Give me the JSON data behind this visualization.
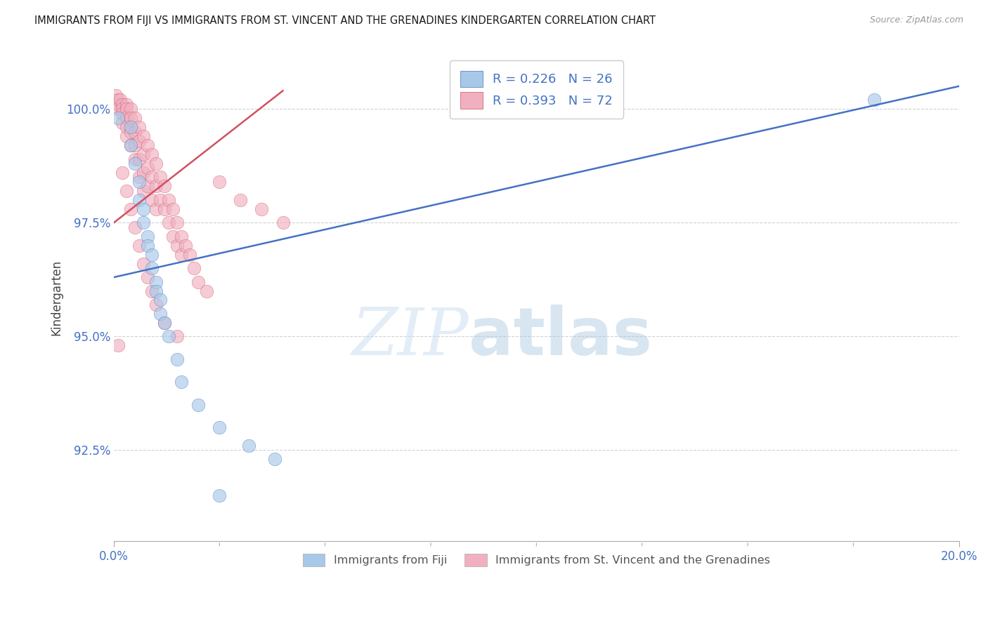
{
  "title": "IMMIGRANTS FROM FIJI VS IMMIGRANTS FROM ST. VINCENT AND THE GRENADINES KINDERGARTEN CORRELATION CHART",
  "source": "Source: ZipAtlas.com",
  "ylabel": "Kindergarten",
  "x_min": 0.0,
  "x_max": 0.2,
  "y_min": 90.5,
  "y_max": 101.2,
  "y_ticks": [
    92.5,
    95.0,
    97.5,
    100.0
  ],
  "y_tick_labels": [
    "92.5%",
    "95.0%",
    "97.5%",
    "100.0%"
  ],
  "x_ticks": [
    0.0,
    0.2
  ],
  "x_tick_labels": [
    "0.0%",
    "20.0%"
  ],
  "fiji_color": "#a8c8e8",
  "stvincent_color": "#f0b0c0",
  "fiji_trendline_color": "#4472c4",
  "stvincent_trendline_color": "#d05060",
  "fiji_points": [
    [
      0.001,
      99.8
    ],
    [
      0.004,
      99.6
    ],
    [
      0.004,
      99.2
    ],
    [
      0.005,
      98.8
    ],
    [
      0.006,
      98.4
    ],
    [
      0.006,
      98.0
    ],
    [
      0.007,
      97.8
    ],
    [
      0.007,
      97.5
    ],
    [
      0.008,
      97.2
    ],
    [
      0.008,
      97.0
    ],
    [
      0.009,
      96.8
    ],
    [
      0.009,
      96.5
    ],
    [
      0.01,
      96.2
    ],
    [
      0.01,
      96.0
    ],
    [
      0.011,
      95.8
    ],
    [
      0.011,
      95.5
    ],
    [
      0.012,
      95.3
    ],
    [
      0.013,
      95.0
    ],
    [
      0.016,
      94.0
    ],
    [
      0.02,
      93.5
    ],
    [
      0.025,
      93.0
    ],
    [
      0.032,
      92.6
    ],
    [
      0.038,
      92.3
    ],
    [
      0.18,
      100.2
    ],
    [
      0.025,
      91.5
    ],
    [
      0.015,
      94.5
    ]
  ],
  "stvincent_points": [
    [
      0.0005,
      100.3
    ],
    [
      0.001,
      100.2
    ],
    [
      0.001,
      100.1
    ],
    [
      0.001,
      100.0
    ],
    [
      0.0015,
      100.2
    ],
    [
      0.002,
      100.1
    ],
    [
      0.002,
      100.0
    ],
    [
      0.002,
      99.9
    ],
    [
      0.002,
      99.7
    ],
    [
      0.003,
      100.1
    ],
    [
      0.003,
      100.0
    ],
    [
      0.003,
      99.8
    ],
    [
      0.003,
      99.6
    ],
    [
      0.003,
      99.4
    ],
    [
      0.004,
      100.0
    ],
    [
      0.004,
      99.8
    ],
    [
      0.004,
      99.5
    ],
    [
      0.004,
      99.2
    ],
    [
      0.005,
      99.8
    ],
    [
      0.005,
      99.5
    ],
    [
      0.005,
      99.2
    ],
    [
      0.005,
      98.9
    ],
    [
      0.006,
      99.6
    ],
    [
      0.006,
      99.3
    ],
    [
      0.006,
      98.9
    ],
    [
      0.006,
      98.5
    ],
    [
      0.007,
      99.4
    ],
    [
      0.007,
      99.0
    ],
    [
      0.007,
      98.6
    ],
    [
      0.007,
      98.2
    ],
    [
      0.008,
      99.2
    ],
    [
      0.008,
      98.7
    ],
    [
      0.008,
      98.3
    ],
    [
      0.009,
      99.0
    ],
    [
      0.009,
      98.5
    ],
    [
      0.009,
      98.0
    ],
    [
      0.01,
      98.8
    ],
    [
      0.01,
      98.3
    ],
    [
      0.01,
      97.8
    ],
    [
      0.011,
      98.5
    ],
    [
      0.011,
      98.0
    ],
    [
      0.012,
      98.3
    ],
    [
      0.012,
      97.8
    ],
    [
      0.013,
      98.0
    ],
    [
      0.013,
      97.5
    ],
    [
      0.014,
      97.8
    ],
    [
      0.014,
      97.2
    ],
    [
      0.015,
      97.5
    ],
    [
      0.015,
      97.0
    ],
    [
      0.016,
      97.2
    ],
    [
      0.016,
      96.8
    ],
    [
      0.017,
      97.0
    ],
    [
      0.018,
      96.8
    ],
    [
      0.019,
      96.5
    ],
    [
      0.02,
      96.2
    ],
    [
      0.022,
      96.0
    ],
    [
      0.001,
      94.8
    ],
    [
      0.025,
      98.4
    ],
    [
      0.03,
      98.0
    ],
    [
      0.035,
      97.8
    ],
    [
      0.04,
      97.5
    ],
    [
      0.002,
      98.6
    ],
    [
      0.003,
      98.2
    ],
    [
      0.004,
      97.8
    ],
    [
      0.005,
      97.4
    ],
    [
      0.006,
      97.0
    ],
    [
      0.007,
      96.6
    ],
    [
      0.008,
      96.3
    ],
    [
      0.009,
      96.0
    ],
    [
      0.01,
      95.7
    ],
    [
      0.012,
      95.3
    ],
    [
      0.015,
      95.0
    ]
  ],
  "fiji_trend": [
    0.0,
    0.2,
    96.3,
    100.5
  ],
  "stvincent_trend": [
    0.0,
    0.04,
    97.5,
    100.4
  ],
  "watermark_zip": "ZIP",
  "watermark_atlas": "atlas",
  "background_color": "#ffffff"
}
